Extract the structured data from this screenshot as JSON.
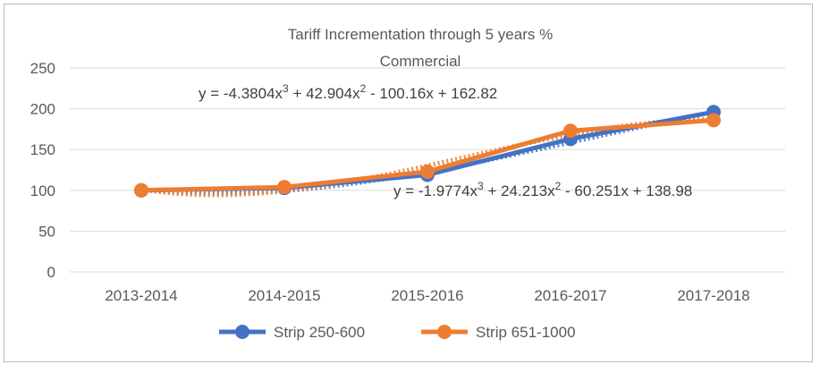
{
  "chart_data": {
    "type": "line",
    "title_line1": "Tariff Incrementation through 5 years %",
    "title_line2": "Commercial",
    "xlabel": "",
    "ylabel": "",
    "categories": [
      "2013-2014",
      "2014-2015",
      "2015-2016",
      "2016-2017",
      "2017-2018"
    ],
    "ylim": [
      0,
      250
    ],
    "yticks": [
      "0",
      "50",
      "100",
      "150",
      "200",
      "250"
    ],
    "grid": true,
    "legend_position": "bottom",
    "series": [
      {
        "name": "Strip 250-600",
        "color": "#4472c4",
        "values": [
          100,
          103,
          119,
          163,
          196
        ],
        "trendline": "poly3",
        "equation_prefix": "y = -1.9774x",
        "equation_mid1": " + 24.213x",
        "equation_mid2": " - 60.251x + 138.98",
        "coeffs": [
          -1.9774,
          24.213,
          -60.251,
          138.98
        ]
      },
      {
        "name": "Strip 651-1000",
        "color": "#ed7d31",
        "values": [
          100,
          104,
          123,
          173,
          186
        ],
        "trendline": "poly3",
        "equation_prefix": "y = -4.3804x",
        "equation_mid1": " + 42.904x",
        "equation_mid2": " - 100.16x + 162.82",
        "coeffs": [
          -4.3804,
          42.904,
          -100.16,
          162.82
        ]
      }
    ],
    "exp3": "3",
    "exp2": "2"
  }
}
